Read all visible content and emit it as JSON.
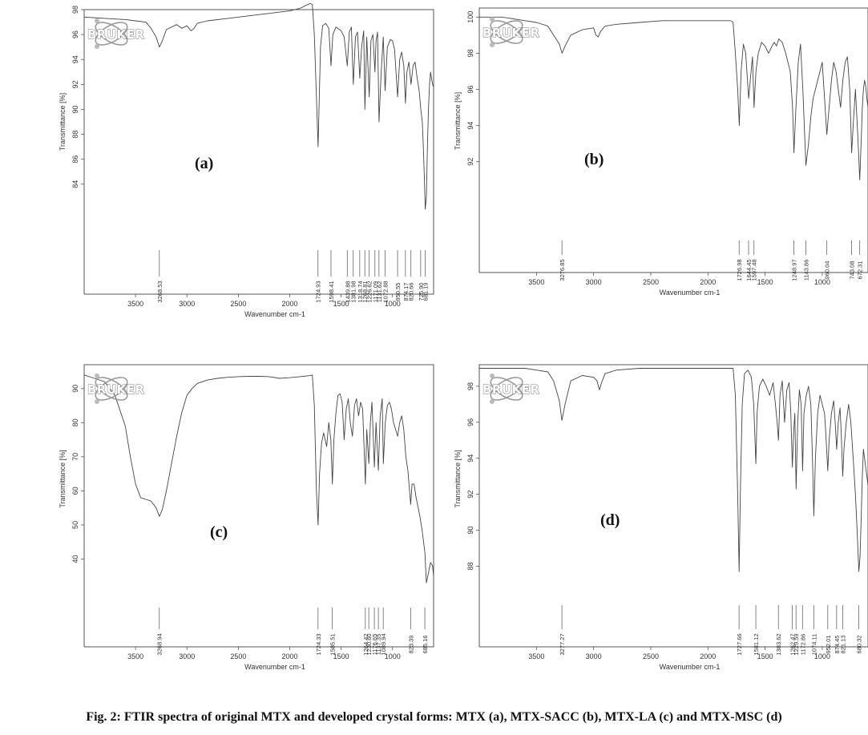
{
  "figure": {
    "caption": "Fig. 2: FTIR spectra of original MTX and developed crystal forms:  MTX (a), MTX-SACC (b), MTX-LA (c) and MTX-MSC (d)"
  },
  "logo_text": "BRUKER",
  "chart_data": [
    {
      "type": "line",
      "panel_label": "(a)",
      "xlabel": "Wavenumber cm-1",
      "ylabel": "Transmittance [%]",
      "xlim": [
        4000,
        600
      ],
      "ylim": [
        80,
        98
      ],
      "x_ticks": [
        3500,
        3000,
        2500,
        2000,
        1500,
        1000
      ],
      "y_ticks": [
        84,
        86,
        88,
        90,
        92,
        94,
        96,
        98
      ],
      "grid": false,
      "peaks": [
        "3268.53",
        "1724.93",
        "1598.41",
        "1439.88",
        "1381.98",
        "1318.74",
        "1268.81",
        "1226.62",
        "1171.09",
        "1131.62",
        "1072.88",
        "950.55",
        "874.17",
        "820.66",
        "725.90",
        "681.19"
      ],
      "series": [
        {
          "x": [
            4000,
            3800,
            3600,
            3500,
            3400,
            3350,
            3300,
            3268,
            3240,
            3200,
            3100,
            3050,
            3000,
            2960,
            2930,
            2900,
            2800,
            2600,
            2400,
            2200,
            2000,
            1900,
            1800,
            1780,
            1760,
            1740,
            1724,
            1715,
            1700,
            1680,
            1650,
            1620,
            1598,
            1580,
            1550,
            1500,
            1470,
            1440,
            1420,
            1400,
            1381,
            1360,
            1340,
            1318,
            1300,
            1280,
            1268,
            1250,
            1226,
            1210,
            1190,
            1171,
            1160,
            1145,
            1131,
            1110,
            1090,
            1072,
            1050,
            1020,
            1000,
            980,
            950,
            930,
            910,
            890,
            874,
            860,
            840,
            820,
            800,
            780,
            760,
            740,
            725,
            710,
            700,
            690,
            681,
            670,
            660,
            650,
            640,
            630,
            620,
            610,
            600
          ],
          "y": [
            97.4,
            97.3,
            97.2,
            97.1,
            97.0,
            96.5,
            95.8,
            95.0,
            95.5,
            96.4,
            96.8,
            96.5,
            96.7,
            96.3,
            96.5,
            96.9,
            97.1,
            97.3,
            97.5,
            97.7,
            97.9,
            98.1,
            98.5,
            98.4,
            96.0,
            91.0,
            87.0,
            90.0,
            95.0,
            96.7,
            96.9,
            96.5,
            93.5,
            96.0,
            96.6,
            96.3,
            95.8,
            93.5,
            96.2,
            96.6,
            92.0,
            95.8,
            96.2,
            92.5,
            95.0,
            96.3,
            90.0,
            95.8,
            91.0,
            95.5,
            96.0,
            93.0,
            95.5,
            96.2,
            89.0,
            93.0,
            95.8,
            91.5,
            95.0,
            95.6,
            95.5,
            94.8,
            91.0,
            94.0,
            94.6,
            93.5,
            90.5,
            93.0,
            93.8,
            92.0,
            93.5,
            93.8,
            92.5,
            91.5,
            90.0,
            89.0,
            87.0,
            84.5,
            82.0,
            83.0,
            87.0,
            90.0,
            92.0,
            93.0,
            92.5,
            92.0,
            91.8
          ]
        }
      ]
    },
    {
      "type": "line",
      "panel_label": "(b)",
      "xlabel": "Wavenumber cm-1",
      "ylabel": "Transmittance [%]",
      "xlim": [
        4000,
        600
      ],
      "ylim": [
        88,
        100.5
      ],
      "x_ticks": [
        3500,
        3000,
        2500,
        2000,
        1500,
        1000
      ],
      "y_ticks": [
        92,
        94,
        96,
        98,
        100
      ],
      "grid": false,
      "peaks": [
        "3276.85",
        "1726.98",
        "1644.45",
        "1597.48",
        "1248.97",
        "1143.86",
        "960.04",
        "743.08",
        "672.31"
      ],
      "series": [
        {
          "x": [
            4000,
            3800,
            3600,
            3500,
            3400,
            3350,
            3300,
            3276,
            3250,
            3200,
            3100,
            3000,
            2980,
            2960,
            2940,
            2900,
            2800,
            2600,
            2400,
            2200,
            2000,
            1900,
            1800,
            1780,
            1760,
            1740,
            1726,
            1710,
            1690,
            1670,
            1644,
            1630,
            1610,
            1597,
            1580,
            1560,
            1530,
            1500,
            1470,
            1440,
            1420,
            1400,
            1380,
            1350,
            1320,
            1300,
            1280,
            1260,
            1248,
            1230,
            1210,
            1190,
            1170,
            1143,
            1120,
            1100,
            1080,
            1060,
            1040,
            1020,
            1000,
            980,
            960,
            940,
            920,
            900,
            880,
            860,
            840,
            820,
            800,
            780,
            760,
            743,
            730,
            710,
            690,
            672,
            660,
            650,
            640,
            630,
            620,
            610,
            600
          ],
          "y": [
            100.0,
            100.0,
            99.8,
            99.7,
            99.5,
            99.0,
            98.5,
            98.0,
            98.4,
            99.0,
            99.3,
            99.4,
            99.0,
            98.9,
            99.2,
            99.5,
            99.6,
            99.7,
            99.8,
            99.8,
            99.8,
            99.8,
            99.8,
            99.7,
            98.0,
            96.0,
            94.0,
            97.0,
            98.5,
            98.0,
            95.5,
            96.5,
            97.8,
            95.0,
            97.0,
            98.0,
            98.6,
            98.4,
            98.0,
            98.4,
            98.6,
            98.4,
            98.8,
            98.6,
            98.0,
            97.5,
            97.0,
            95.0,
            92.5,
            95.0,
            97.5,
            98.5,
            96.0,
            91.8,
            93.0,
            94.5,
            95.5,
            96.0,
            96.5,
            97.0,
            97.5,
            95.5,
            93.5,
            95.0,
            96.5,
            97.5,
            97.0,
            96.0,
            95.0,
            96.5,
            97.5,
            97.8,
            96.0,
            92.5,
            94.0,
            96.0,
            93.5,
            91.0,
            93.0,
            95.0,
            96.0,
            96.5,
            96.2,
            95.5,
            95.0
          ]
        }
      ]
    },
    {
      "type": "line",
      "panel_label": "(c)",
      "xlabel": "Wavenumber cm-1",
      "ylabel": "Transmittance [%]",
      "xlim": [
        4000,
        600
      ],
      "ylim": [
        30,
        97
      ],
      "x_ticks": [
        3500,
        3000,
        2500,
        2000,
        1500,
        1000
      ],
      "y_ticks": [
        40,
        50,
        60,
        70,
        80,
        90
      ],
      "grid": false,
      "peaks": [
        "3268.94",
        "1724.33",
        "1585.51",
        "1264.42",
        "1230.60",
        "1176.65",
        "1137.35",
        "1089.94",
        "823.39",
        "685.16"
      ],
      "series": [
        {
          "x": [
            4000,
            3900,
            3800,
            3700,
            3600,
            3550,
            3500,
            3450,
            3400,
            3350,
            3300,
            3268,
            3240,
            3200,
            3150,
            3100,
            3050,
            3000,
            2950,
            2900,
            2800,
            2700,
            2600,
            2500,
            2400,
            2300,
            2200,
            2100,
            2000,
            1900,
            1800,
            1780,
            1760,
            1740,
            1724,
            1710,
            1690,
            1670,
            1640,
            1620,
            1600,
            1585,
            1570,
            1550,
            1530,
            1510,
            1490,
            1470,
            1450,
            1430,
            1410,
            1390,
            1370,
            1350,
            1330,
            1310,
            1290,
            1264,
            1250,
            1230,
            1215,
            1200,
            1176,
            1160,
            1137,
            1120,
            1100,
            1089,
            1070,
            1050,
            1030,
            1010,
            990,
            970,
            950,
            930,
            910,
            890,
            870,
            850,
            823,
            810,
            790,
            770,
            750,
            730,
            710,
            685,
            670,
            650,
            630,
            610,
            600
          ],
          "y": [
            94.0,
            93.0,
            92.0,
            88.0,
            79.0,
            70.0,
            62.0,
            58.0,
            57.5,
            57.0,
            55.0,
            52.5,
            54.5,
            60.0,
            68.0,
            76.0,
            83.0,
            88.0,
            90.0,
            91.5,
            92.5,
            93.0,
            93.3,
            93.5,
            93.6,
            93.6,
            93.5,
            93.0,
            93.2,
            93.5,
            93.8,
            94.0,
            85.0,
            60.0,
            50.0,
            65.0,
            74.0,
            77.0,
            73.0,
            80.0,
            75.0,
            62.0,
            75.0,
            83.0,
            88.0,
            88.5,
            86.0,
            75.0,
            84.0,
            87.0,
            80.0,
            76.0,
            85.0,
            87.0,
            82.0,
            86.0,
            84.0,
            62.0,
            78.0,
            68.0,
            80.0,
            86.0,
            67.0,
            80.0,
            66.0,
            82.0,
            87.0,
            68.0,
            80.0,
            85.0,
            86.0,
            84.0,
            80.0,
            78.0,
            76.0,
            80.0,
            82.0,
            78.0,
            70.0,
            66.0,
            56.0,
            62.0,
            62.0,
            58.0,
            55.0,
            52.0,
            48.0,
            42.0,
            33.0,
            36.0,
            39.0,
            38.0,
            35.0
          ]
        }
      ]
    },
    {
      "type": "line",
      "panel_label": "(d)",
      "xlabel": "Wavenumber cm-1",
      "ylabel": "Transmittance [%]",
      "xlim": [
        4000,
        600
      ],
      "ylim": [
        86.5,
        99.2
      ],
      "x_ticks": [
        3500,
        3000,
        2500,
        2000,
        1500,
        1000
      ],
      "y_ticks": [
        88,
        90,
        92,
        94,
        96,
        98
      ],
      "grid": false,
      "peaks": [
        "3277.27",
        "1727.66",
        "1581.12",
        "1383.62",
        "1262.47",
        "1229.59",
        "1172.86",
        "1074.11",
        "952.01",
        "874.45",
        "821.13",
        "680.32"
      ],
      "series": [
        {
          "x": [
            4000,
            3800,
            3600,
            3500,
            3400,
            3350,
            3300,
            3277,
            3250,
            3200,
            3100,
            3000,
            2970,
            2950,
            2930,
            2900,
            2800,
            2600,
            2400,
            2200,
            2000,
            1900,
            1800,
            1780,
            1760,
            1740,
            1727,
            1715,
            1700,
            1680,
            1650,
            1620,
            1600,
            1581,
            1570,
            1550,
            1520,
            1490,
            1460,
            1430,
            1410,
            1395,
            1383,
            1370,
            1350,
            1330,
            1310,
            1290,
            1275,
            1262,
            1250,
            1240,
            1229,
            1215,
            1200,
            1185,
            1172,
            1160,
            1140,
            1120,
            1100,
            1086,
            1074,
            1060,
            1040,
            1020,
            1000,
            980,
            970,
            952,
            940,
            920,
            900,
            885,
            874,
            860,
            845,
            835,
            821,
            810,
            790,
            770,
            750,
            730,
            710,
            695,
            680,
            670,
            660,
            650,
            640,
            630,
            620,
            610,
            600
          ],
          "y": [
            99.0,
            99.0,
            99.0,
            98.9,
            98.8,
            98.3,
            97.2,
            96.1,
            97.0,
            98.3,
            98.6,
            98.5,
            98.3,
            97.8,
            98.2,
            98.7,
            98.9,
            99.0,
            99.0,
            99.0,
            99.0,
            99.0,
            99.0,
            99.0,
            97.5,
            92.0,
            87.7,
            92.5,
            97.0,
            98.7,
            98.9,
            98.5,
            97.0,
            93.7,
            96.5,
            98.0,
            98.4,
            98.0,
            97.5,
            98.2,
            97.0,
            96.0,
            95.0,
            97.5,
            98.3,
            96.0,
            97.8,
            98.2,
            96.5,
            93.5,
            95.5,
            96.5,
            92.3,
            96.0,
            97.8,
            97.0,
            93.3,
            96.5,
            97.5,
            98.0,
            97.0,
            94.0,
            90.8,
            94.0,
            96.5,
            97.5,
            97.0,
            96.5,
            95.5,
            93.3,
            95.0,
            96.5,
            97.2,
            95.8,
            94.5,
            96.0,
            96.8,
            95.5,
            93.0,
            94.5,
            96.0,
            97.0,
            96.0,
            94.0,
            92.0,
            90.0,
            87.7,
            88.5,
            90.5,
            93.0,
            94.5,
            94.0,
            93.5,
            93.0,
            92.5
          ]
        }
      ]
    }
  ]
}
